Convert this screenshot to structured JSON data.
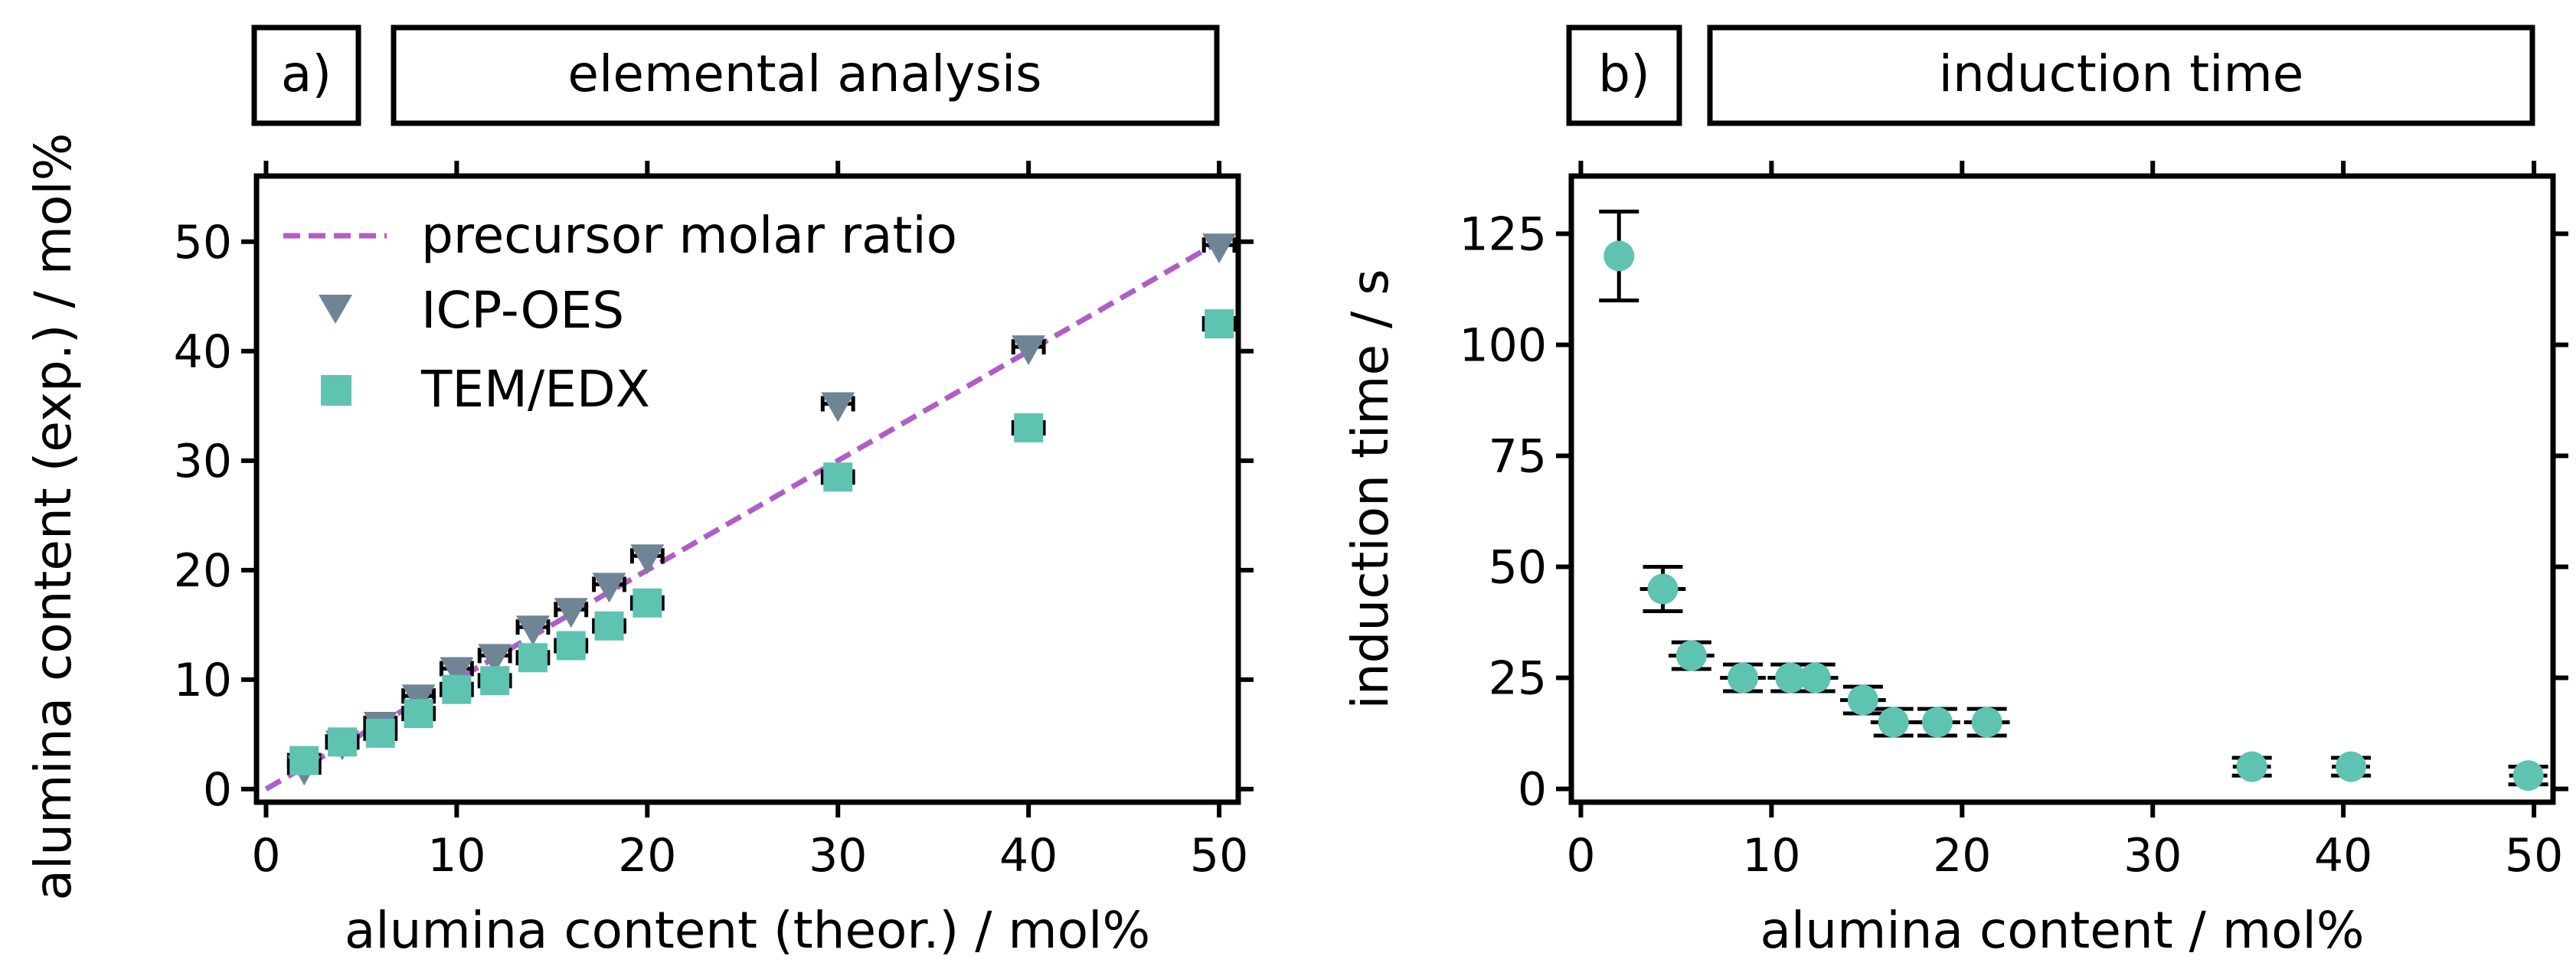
{
  "colors": {
    "marker_teal": "#5ec3b1",
    "marker_slate": "#6f8596",
    "dashed_line": "#b05ec6",
    "frame": "#000000"
  },
  "chart_data": [
    {
      "type": "scatter",
      "panel_label": "a)",
      "panel_title": "elemental analysis",
      "xlabel": "alumina content (theor.) / mol%",
      "ylabel": "alumina content (exp.) / mol%",
      "xlim": [
        -0.5,
        51
      ],
      "ylim": [
        -1.2,
        56
      ],
      "xticks": [
        0,
        10,
        20,
        30,
        40,
        50
      ],
      "yticks": [
        0,
        10,
        20,
        30,
        40,
        50
      ],
      "legend_position": "top-left",
      "legend": [
        {
          "name": "precursor molar ratio",
          "kind": "line"
        },
        {
          "name": "ICP-OES",
          "kind": "triangle"
        },
        {
          "name": "TEM/EDX",
          "kind": "square"
        }
      ],
      "series": [
        {
          "name": "precursor molar ratio",
          "kind": "line",
          "x": [
            0,
            50
          ],
          "y": [
            0,
            50
          ]
        },
        {
          "name": "ICP-OES",
          "kind": "triangle",
          "x": [
            2,
            4,
            6,
            8,
            10,
            12,
            14,
            16,
            18,
            20,
            30,
            40,
            50
          ],
          "y": [
            2.0,
            4.3,
            6.0,
            8.5,
            11.0,
            12.2,
            14.8,
            16.4,
            18.7,
            21.3,
            35.2,
            40.4,
            49.7
          ],
          "xerr": [
            0.8,
            0.8,
            0.8,
            0.8,
            0.8,
            0.8,
            0.8,
            0.8,
            0.8,
            0.8,
            0.8,
            0.8,
            0.8
          ]
        },
        {
          "name": "TEM/EDX",
          "kind": "square",
          "x": [
            2,
            4,
            6,
            8,
            10,
            12,
            14,
            16,
            18,
            20,
            30,
            40,
            50
          ],
          "y": [
            2.6,
            4.3,
            5.1,
            6.9,
            9.1,
            9.9,
            12.0,
            13.1,
            14.9,
            17.0,
            28.5,
            33.0,
            42.5
          ],
          "xerr": [
            0.8,
            0.8,
            0.8,
            0.8,
            0.8,
            0.8,
            0.8,
            0.8,
            0.8,
            0.8,
            0.8,
            0.8,
            0.8
          ]
        }
      ]
    },
    {
      "type": "scatter",
      "panel_label": "b)",
      "panel_title": "induction time",
      "xlabel": "alumina content / mol%",
      "ylabel": "induction time / s",
      "xlim": [
        -0.5,
        51
      ],
      "ylim": [
        -3,
        138
      ],
      "xticks": [
        0,
        10,
        20,
        30,
        40,
        50
      ],
      "yticks": [
        0,
        25,
        50,
        75,
        100,
        125
      ],
      "series": [
        {
          "name": "induction time",
          "kind": "circle",
          "x": [
            2.0,
            4.3,
            5.8,
            8.5,
            11.0,
            12.3,
            14.8,
            16.4,
            18.7,
            21.3,
            35.2,
            40.4,
            49.7
          ],
          "y": [
            120,
            45,
            30,
            25,
            25,
            25,
            20,
            15,
            15,
            15,
            5,
            5,
            3
          ],
          "xerr": [
            0,
            1.2,
            1.2,
            1.2,
            1.2,
            1.2,
            1.2,
            1.2,
            1.2,
            1.2,
            1.0,
            1.0,
            1.0
          ],
          "yerr": [
            10,
            5,
            3,
            3,
            3,
            3,
            3,
            3,
            3,
            3,
            2,
            2,
            2
          ]
        }
      ]
    }
  ]
}
